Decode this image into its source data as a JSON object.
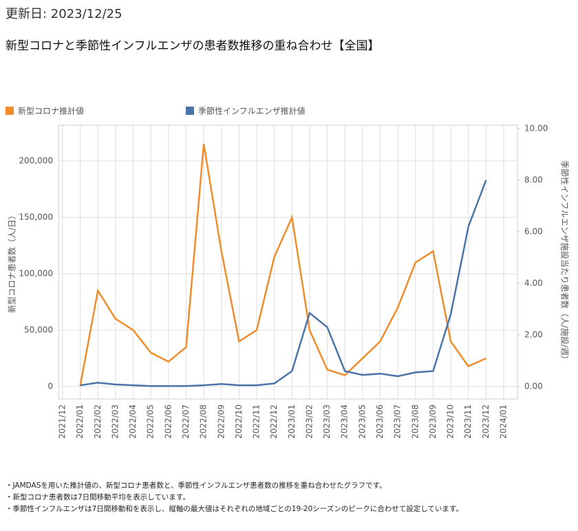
{
  "updated": "更新日: 2023/12/25",
  "notes": [
    "・JAMDASを用いた推計値の、新型コロナ患者数と、季節性インフルエンザ患者数の推移を重ね合わせたグラフです。",
    "・新型コロナ患者数は7日間移動平均を表示しています。",
    "・季節性インフルエンザは7日間移動和を表示し、縦軸の最大値はそれぞれの地域ごとの19-20シーズンのピークに合わせて設定しています。"
  ],
  "chart_data": {
    "type": "line",
    "title": "新型コロナと季節性インフルエンザの患者数推移の重ね合わせ【全国】",
    "y_label": "新型コロナ患者数（人/日）",
    "y2_label": "季節性インフルエンザ施設当たり患者数（人/施設/週）",
    "categories": [
      "2021/12",
      "2022/01",
      "2022/02",
      "2022/03",
      "2022/04",
      "2022/05",
      "2022/06",
      "2022/07",
      "2022/08",
      "2022/09",
      "2022/10",
      "2022/11",
      "2022/12",
      "2023/01",
      "2023/02",
      "2023/03",
      "2023/04",
      "2023/05",
      "2023/06",
      "2023/07",
      "2023/08",
      "2023/09",
      "2023/10",
      "2023/11",
      "2023/12",
      "2024/01"
    ],
    "series": [
      {
        "name": "新型コロナ推計値",
        "color": "#f08c2a",
        "values": [
          null,
          1000,
          85000,
          60000,
          50000,
          30000,
          22000,
          35000,
          215000,
          120000,
          40000,
          50000,
          115000,
          150000,
          50000,
          15000,
          10000,
          25000,
          40000,
          70000,
          110000,
          120000,
          40000,
          18000,
          25000,
          null
        ]
      },
      {
        "name": "季節性インフルエンザ推計値",
        "color": "#4a74a8",
        "axis": "y2",
        "values": [
          null,
          0.05,
          0.15,
          0.08,
          0.05,
          0.02,
          0.02,
          0.02,
          0.05,
          0.1,
          0.05,
          0.05,
          0.12,
          0.6,
          2.85,
          2.3,
          0.6,
          0.45,
          0.5,
          0.4,
          0.55,
          0.6,
          2.8,
          6.2,
          8.0,
          null
        ]
      }
    ],
    "ylim": [
      -11000,
      231700
    ],
    "yticks": [
      0,
      {
        "value": 50000,
        "label": "50,000"
      },
      {
        "value": 100000,
        "label": "100,000"
      },
      {
        "value": 150000,
        "label": "150,000"
      },
      {
        "value": 200000,
        "label": "200,000"
      }
    ],
    "y2lim": [
      -0.48,
      10.13
    ],
    "y2ticks": [
      {
        "value": 0,
        "label": "0.00"
      },
      {
        "value": 2,
        "label": "2.00"
      },
      {
        "value": 4,
        "label": "4.00"
      },
      {
        "value": 6,
        "label": "6.00"
      },
      {
        "value": 8,
        "label": "8.00"
      },
      {
        "value": 10,
        "label": "10.00"
      }
    ],
    "grid": true
  }
}
